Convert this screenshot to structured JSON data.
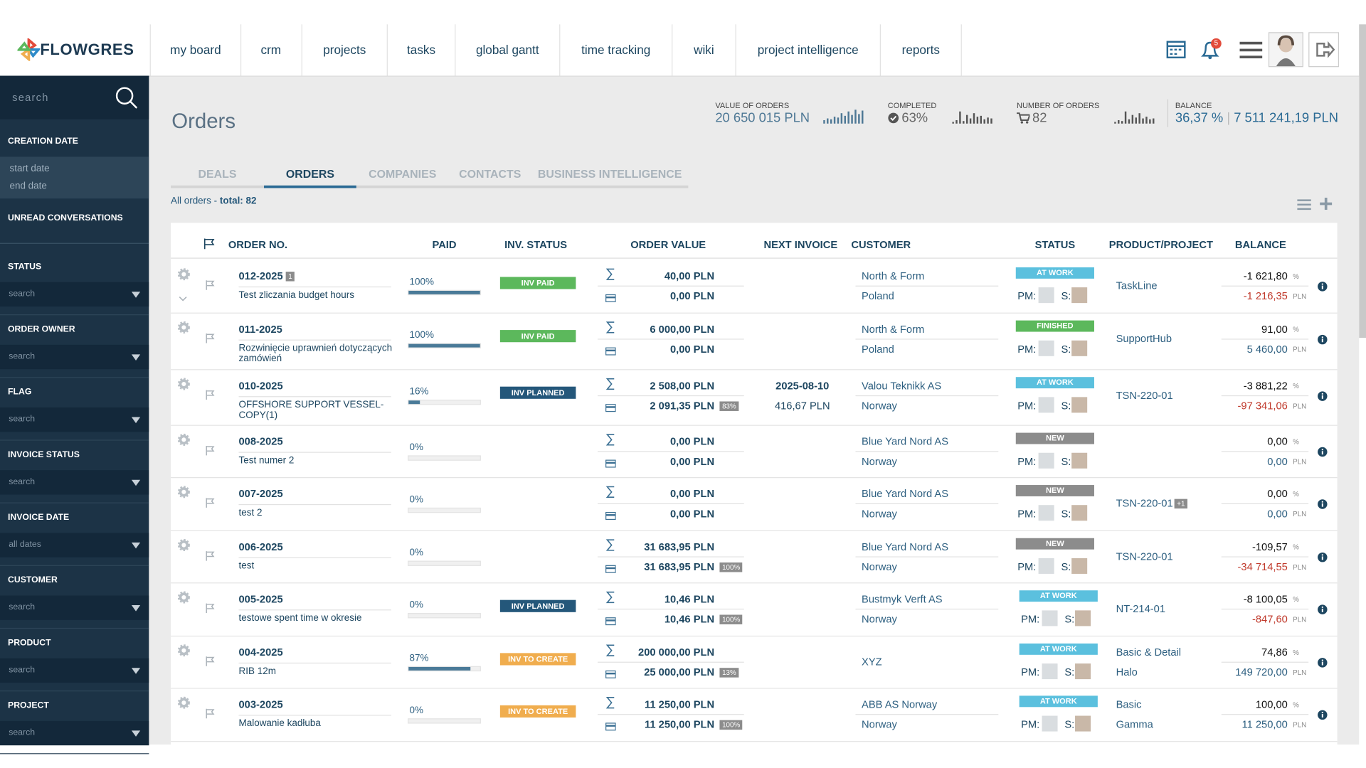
{
  "nav": {
    "logo": "FLOWGRES",
    "menu": [
      "my board",
      "crm",
      "projects",
      "tasks",
      "global gantt",
      "time tracking",
      "wiki",
      "project intelligence",
      "reports"
    ],
    "notifications": "5"
  },
  "sidebar": {
    "search": "search",
    "creation_date": {
      "title": "CREATION DATE",
      "start": "start date",
      "end": "end date"
    },
    "unread": "UNREAD CONVERSATIONS",
    "filters": [
      {
        "title": "STATUS",
        "placeholder": "search"
      },
      {
        "title": "ORDER OWNER",
        "placeholder": "search"
      },
      {
        "title": "FLAG",
        "placeholder": "search"
      },
      {
        "title": "INVOICE STATUS",
        "placeholder": "search"
      },
      {
        "title": "INVOICE DATE",
        "placeholder": "all dates"
      },
      {
        "title": "CUSTOMER",
        "placeholder": "search"
      },
      {
        "title": "PRODUCT",
        "placeholder": "search"
      },
      {
        "title": "PROJECT",
        "placeholder": "search"
      }
    ]
  },
  "header": {
    "title": "Orders",
    "stats": {
      "value": {
        "label": "VALUE OF ORDERS",
        "text": "20 650 015 PLN"
      },
      "completed": {
        "label": "COMPLETED",
        "text": "63%"
      },
      "count": {
        "label": "NUMBER OF ORDERS",
        "text": "82"
      },
      "balance": {
        "label": "BALANCE",
        "pct": "36,37 %",
        "amount": "7 511 241,19 PLN"
      }
    }
  },
  "tabs": {
    "items": [
      "DEALS",
      "ORDERS",
      "COMPANIES",
      "CONTACTS",
      "BUSINESS INTELLIGENCE"
    ],
    "active": 1
  },
  "summary": {
    "prefix": "All orders - ",
    "total": "total: 82"
  },
  "table": {
    "columns": [
      "ORDER NO.",
      "PAID",
      "INV. STATUS",
      "ORDER VALUE",
      "NEXT INVOICE",
      "CUSTOMER",
      "STATUS",
      "PRODUCT/PROJECT",
      "BALANCE"
    ],
    "units": {
      "pct": "%",
      "cur": "PLN"
    },
    "labels": {
      "pm": "PM:",
      "s": "S:"
    },
    "inv_colors": {
      "INV PAID": "#5cb85c",
      "INV PLANNED": "#24577a",
      "INV TO CREATE": "#f0ad4e"
    },
    "status_colors": {
      "AT WORK": "#5bc0de",
      "FINISHED": "#5cb85c",
      "NEW": "#8c8c8c"
    },
    "rows": [
      {
        "no": "012-2025",
        "badge": "1",
        "desc": "Test zliczania budget hours",
        "paid": {
          "value": 100,
          "label": "100%"
        },
        "inv_status": "INV PAID",
        "value": "40,00 PLN",
        "invoiced": "0,00 PLN",
        "customer": "North & Form",
        "country": "Poland",
        "status": "AT WORK",
        "product": "TaskLine",
        "bal_pct": "-1 621,80",
        "bal": "-1 216,35"
      },
      {
        "no": "011-2025",
        "desc": "Rozwinięcie uprawnień dotyczących zamówień",
        "paid": {
          "value": 100,
          "label": "100%"
        },
        "inv_status": "INV PAID",
        "value": "6 000,00 PLN",
        "invoiced": "0,00 PLN",
        "customer": "North & Form",
        "country": "Poland",
        "status": "FINISHED",
        "product": "SupportHub",
        "bal_pct": "91,00",
        "bal": "5 460,00"
      },
      {
        "no": "010-2025",
        "desc": "OFFSHORE SUPPORT VESSEL-COPY(1)",
        "paid": {
          "value": 16,
          "label": "16%"
        },
        "inv_status": "INV PLANNED",
        "value": "2 508,00 PLN",
        "invoiced": "2 091,35 PLN",
        "invoiced_badge": "83%",
        "next_date": "2025-08-10",
        "next_amount": "416,67 PLN",
        "customer": "Valou Teknikk AS",
        "country": "Norway",
        "status": "AT WORK",
        "product": "TSN-220-01",
        "bal_pct": "-3 881,22",
        "bal": "-97 341,06"
      },
      {
        "no": "008-2025",
        "desc": "Test numer 2",
        "paid": {
          "value": 0,
          "label": "0%"
        },
        "value": "0,00 PLN",
        "invoiced": "0,00 PLN",
        "customer": "Blue Yard Nord AS",
        "country": "Norway",
        "status": "NEW",
        "bal_pct": "0,00",
        "bal": "0,00"
      },
      {
        "no": "007-2025",
        "desc": "test 2",
        "paid": {
          "value": 0,
          "label": "0%"
        },
        "value": "0,00 PLN",
        "invoiced": "0,00 PLN",
        "customer": "Blue Yard Nord AS",
        "country": "Norway",
        "status": "NEW",
        "product": "TSN-220-01",
        "product_badge": "+1",
        "bal_pct": "0,00",
        "bal": "0,00"
      },
      {
        "no": "006-2025",
        "desc": "test",
        "paid": {
          "value": 0,
          "label": "0%"
        },
        "value": "31 683,95 PLN",
        "invoiced": "31 683,95 PLN",
        "invoiced_badge": "100%",
        "customer": "Blue Yard Nord AS",
        "country": "Norway",
        "status": "NEW",
        "product": "TSN-220-01",
        "bal_pct": "-109,57",
        "bal": "-34 714,55"
      },
      {
        "no": "005-2025",
        "desc": "testowe spent time w okresie",
        "paid": {
          "value": 0,
          "label": "0%"
        },
        "inv_status": "INV PLANNED",
        "value": "10,46 PLN",
        "invoiced": "10,46 PLN",
        "invoiced_badge": "100%",
        "customer": "Bustmyk Verft AS",
        "country": "Norway",
        "status": "AT WORK",
        "product": "NT-214-01",
        "bal_pct": "-8 100,05",
        "bal": "-847,60"
      },
      {
        "no": "004-2025",
        "desc": "RIB 12m",
        "paid": {
          "value": 87,
          "label": "87%"
        },
        "inv_status": "INV TO CREATE",
        "value": "200 000,00 PLN",
        "invoiced": "25 000,00 PLN",
        "invoiced_badge": "13%",
        "customer": "XYZ",
        "status": "AT WORK",
        "product": "Basic & Detail",
        "product2": "Halo",
        "bal_pct": "74,86",
        "bal": "149 720,00"
      },
      {
        "no": "003-2025",
        "desc": "Malowanie kadłuba",
        "paid": {
          "value": 0,
          "label": "0%"
        },
        "inv_status": "INV TO CREATE",
        "value": "11 250,00 PLN",
        "invoiced": "11 250,00 PLN",
        "invoiced_badge": "100%",
        "customer": "ABB AS Norway",
        "country": "Norway",
        "status": "AT WORK",
        "product": "Basic",
        "product2": "Gamma",
        "bal_pct": "100,00",
        "bal": "11 250,00"
      }
    ]
  }
}
